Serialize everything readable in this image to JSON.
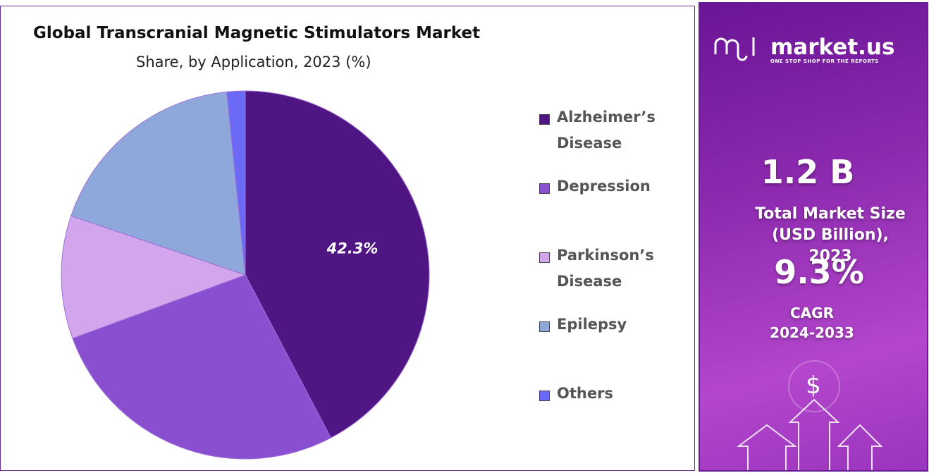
{
  "chart_data": {
    "type": "pie",
    "title": "Global Transcranial Magnetic Stimulators Market",
    "subtitle": "Share, by Application, 2023 (%)",
    "categories": [
      "Alzheimer’s Disease",
      "Depression",
      "Parkinson’s Disease",
      "Epilepsy",
      "Others"
    ],
    "values": [
      42.3,
      27.1,
      10.8,
      18.2,
      1.6
    ],
    "value_labels": [
      "42.3%",
      null,
      null,
      null,
      null
    ],
    "colors": [
      "#4f1583",
      "#8a4fd0",
      "#d3a5ec",
      "#8fa8dc",
      "#6b6af6"
    ],
    "legend": "right"
  },
  "panel": {
    "brand": "market.us",
    "tagline": "ONE STOP SHOP FOR THE REPORTS",
    "market_size": "1.2 B",
    "market_size_label": "Total Market Size (USD Billion), 2023",
    "cagr": "9.3%",
    "cagr_label": "CAGR",
    "cagr_period": "2024-2033",
    "icon": "$"
  }
}
